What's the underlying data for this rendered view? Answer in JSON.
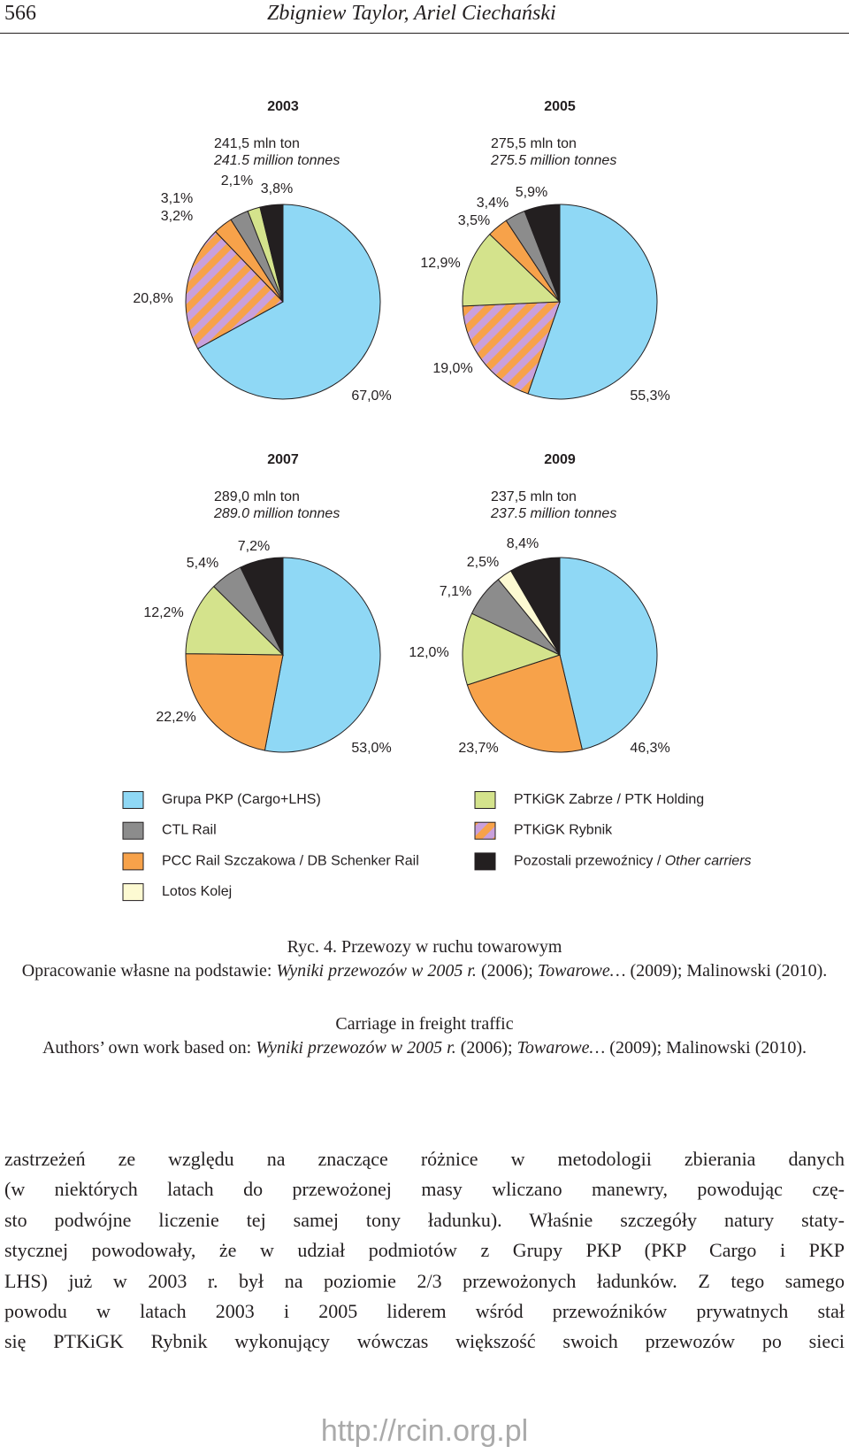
{
  "header": {
    "page_number": "566",
    "authors": "Zbigniew Taylor, Ariel Ciechański"
  },
  "chart_data": [
    {
      "type": "pie",
      "title": "2003",
      "subtitle": "241,5 mln ton",
      "subtitle_en": "241.5 million tonnes",
      "values": [
        67.0,
        20.8,
        3.2,
        3.1,
        2.1,
        3.8
      ],
      "value_labels": [
        "67,0%",
        "20,8%",
        "3,2%",
        "3,1%",
        "2,1%",
        "3,8%"
      ],
      "colors": [
        "#8fd8f5",
        "stripes",
        "#f7a24a",
        "#8c8c8c",
        "#d4e38c",
        "#231f20"
      ]
    },
    {
      "type": "pie",
      "title": "2005",
      "subtitle": "275,5 mln ton",
      "subtitle_en": "275.5 million tonnes",
      "values": [
        55.3,
        19.0,
        12.9,
        3.5,
        3.4,
        5.9
      ],
      "value_labels": [
        "55,3%",
        "19,0%",
        "12,9%",
        "3,5%",
        "3,4%",
        "5,9%"
      ],
      "colors": [
        "#8fd8f5",
        "stripes",
        "#d4e38c",
        "#f7a24a",
        "#8c8c8c",
        "#231f20"
      ]
    },
    {
      "type": "pie",
      "title": "2007",
      "subtitle": "289,0 mln ton",
      "subtitle_en": "289.0 million tonnes",
      "values": [
        53.0,
        22.2,
        12.2,
        5.4,
        7.2
      ],
      "value_labels": [
        "53,0%",
        "22,2%",
        "12,2%",
        "5,4%",
        "7,2%"
      ],
      "colors": [
        "#8fd8f5",
        "#f7a24a",
        "#d4e38c",
        "#8c8c8c",
        "#231f20"
      ]
    },
    {
      "type": "pie",
      "title": "2009",
      "subtitle": "237,5 mln ton",
      "subtitle_en": "237.5 million tonnes",
      "values": [
        46.3,
        23.7,
        12.0,
        7.1,
        2.5,
        8.4
      ],
      "value_labels": [
        "46,3%",
        "23,7%",
        "12,0%",
        "7,1%",
        "2,5%",
        "8,4%"
      ],
      "colors": [
        "#8fd8f5",
        "#f7a24a",
        "#d4e38c",
        "#8c8c8c",
        "#fdfad2",
        "#231f20"
      ]
    }
  ],
  "legend": {
    "items": [
      {
        "label": "Grupa PKP (Cargo+LHS)",
        "color": "#8fd8f5"
      },
      {
        "label": "CTL Rail",
        "color": "#8c8c8c"
      },
      {
        "label": "PCC Rail Szczakowa / DB Schenker Rail",
        "color": "#f7a24a"
      },
      {
        "label": "Lotos Kolej",
        "color": "#fdfad2"
      },
      {
        "label": "PTKiGK Zabrze / PTK Holding",
        "color": "#d4e38c"
      },
      {
        "label": "PTKiGK Rybnik",
        "color": "stripes"
      },
      {
        "label": "Pozostali przewoźnicy / ",
        "label_en": "Other carriers",
        "color": "#231f20"
      }
    ]
  },
  "caption": {
    "title_pl": "Ryc. 4. Przewozy w ruchu towarowym",
    "source_pl": [
      "Opracowanie własne na podstawie: ",
      "Wyniki przewozów w 2005 r.",
      " (2006); ",
      "Towarowe…",
      " (2009); Malinowski (2010)."
    ],
    "title_en": "Carriage in freight traffic",
    "source_en": [
      "Authors’ own work based on: ",
      "Wyniki przewozów w 2005 r.",
      " (2006); ",
      "Towarowe…",
      " (2009); Malinowski (2010)."
    ]
  },
  "body": {
    "lines": [
      "zastrzeżeń ze względu na znaczące różnice w metodologii zbierania danych",
      "(w niektórych latach do przewożonej masy wliczano manewry, powodując czę-",
      "sto podwójne liczenie tej samej tony ładunku). Właśnie szczegóły natury staty-",
      "stycznej powodowały, że w udział podmiotów z Grupy PKP (PKP Cargo i PKP",
      "LHS) już w 2003 r. był na poziomie 2/3 przewożonych ładunków. Z tego samego",
      "powodu w latach 2003 i 2005 liderem wśród przewoźników prywatnych stał",
      "się PTKiGK Rybnik wykonujący wówczas większość swoich przewozów po sieci"
    ]
  },
  "footer": {
    "url": "http://rcin.org.pl"
  }
}
